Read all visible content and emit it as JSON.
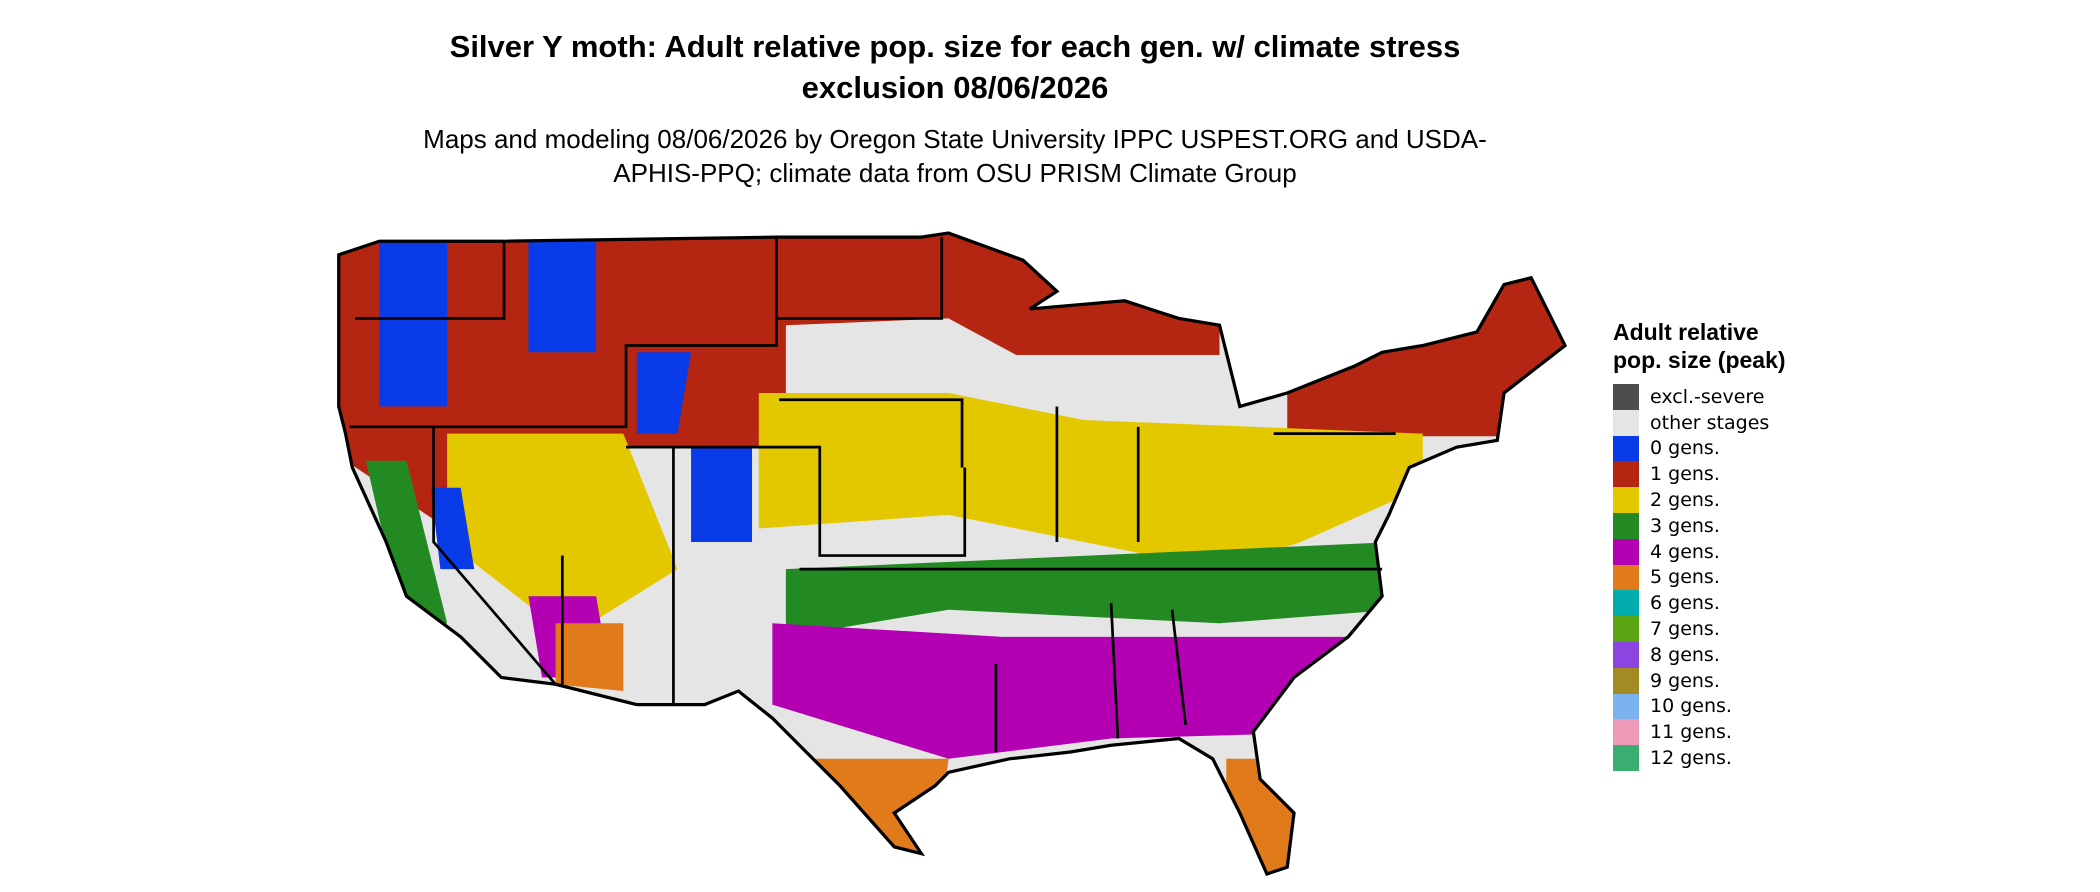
{
  "title": "Silver Y moth: Adult relative pop. size for each gen. w/ climate stress exclusion 08/06/2026",
  "subtitle": "Maps and modeling 08/06/2026 by Oregon State University IPPC USPEST.ORG and USDA-APHIS-PPQ; climate data from OSU PRISM Climate Group",
  "legend": {
    "title": "Adult relative pop. size (peak)",
    "items": [
      {
        "label": "excl.-severe",
        "color": "#4d4d4d"
      },
      {
        "label": "other stages",
        "color": "#e5e5e5"
      },
      {
        "label": "0 gens.",
        "color": "#0a3be8"
      },
      {
        "label": "1 gens.",
        "color": "#b52612"
      },
      {
        "label": "2 gens.",
        "color": "#e3c800"
      },
      {
        "label": "3 gens.",
        "color": "#238a23"
      },
      {
        "label": "4 gens.",
        "color": "#b200b2"
      },
      {
        "label": "5 gens.",
        "color": "#e07a1a"
      },
      {
        "label": "6 gens.",
        "color": "#00adad"
      },
      {
        "label": "7 gens.",
        "color": "#5ba512"
      },
      {
        "label": "8 gens.",
        "color": "#8b45e0"
      },
      {
        "label": "9 gens.",
        "color": "#a38a22"
      },
      {
        "label": "10 gens.",
        "color": "#7ab2ee"
      },
      {
        "label": "11 gens.",
        "color": "#ef9ab8"
      },
      {
        "label": "12 gens.",
        "color": "#3aad70"
      }
    ]
  }
}
